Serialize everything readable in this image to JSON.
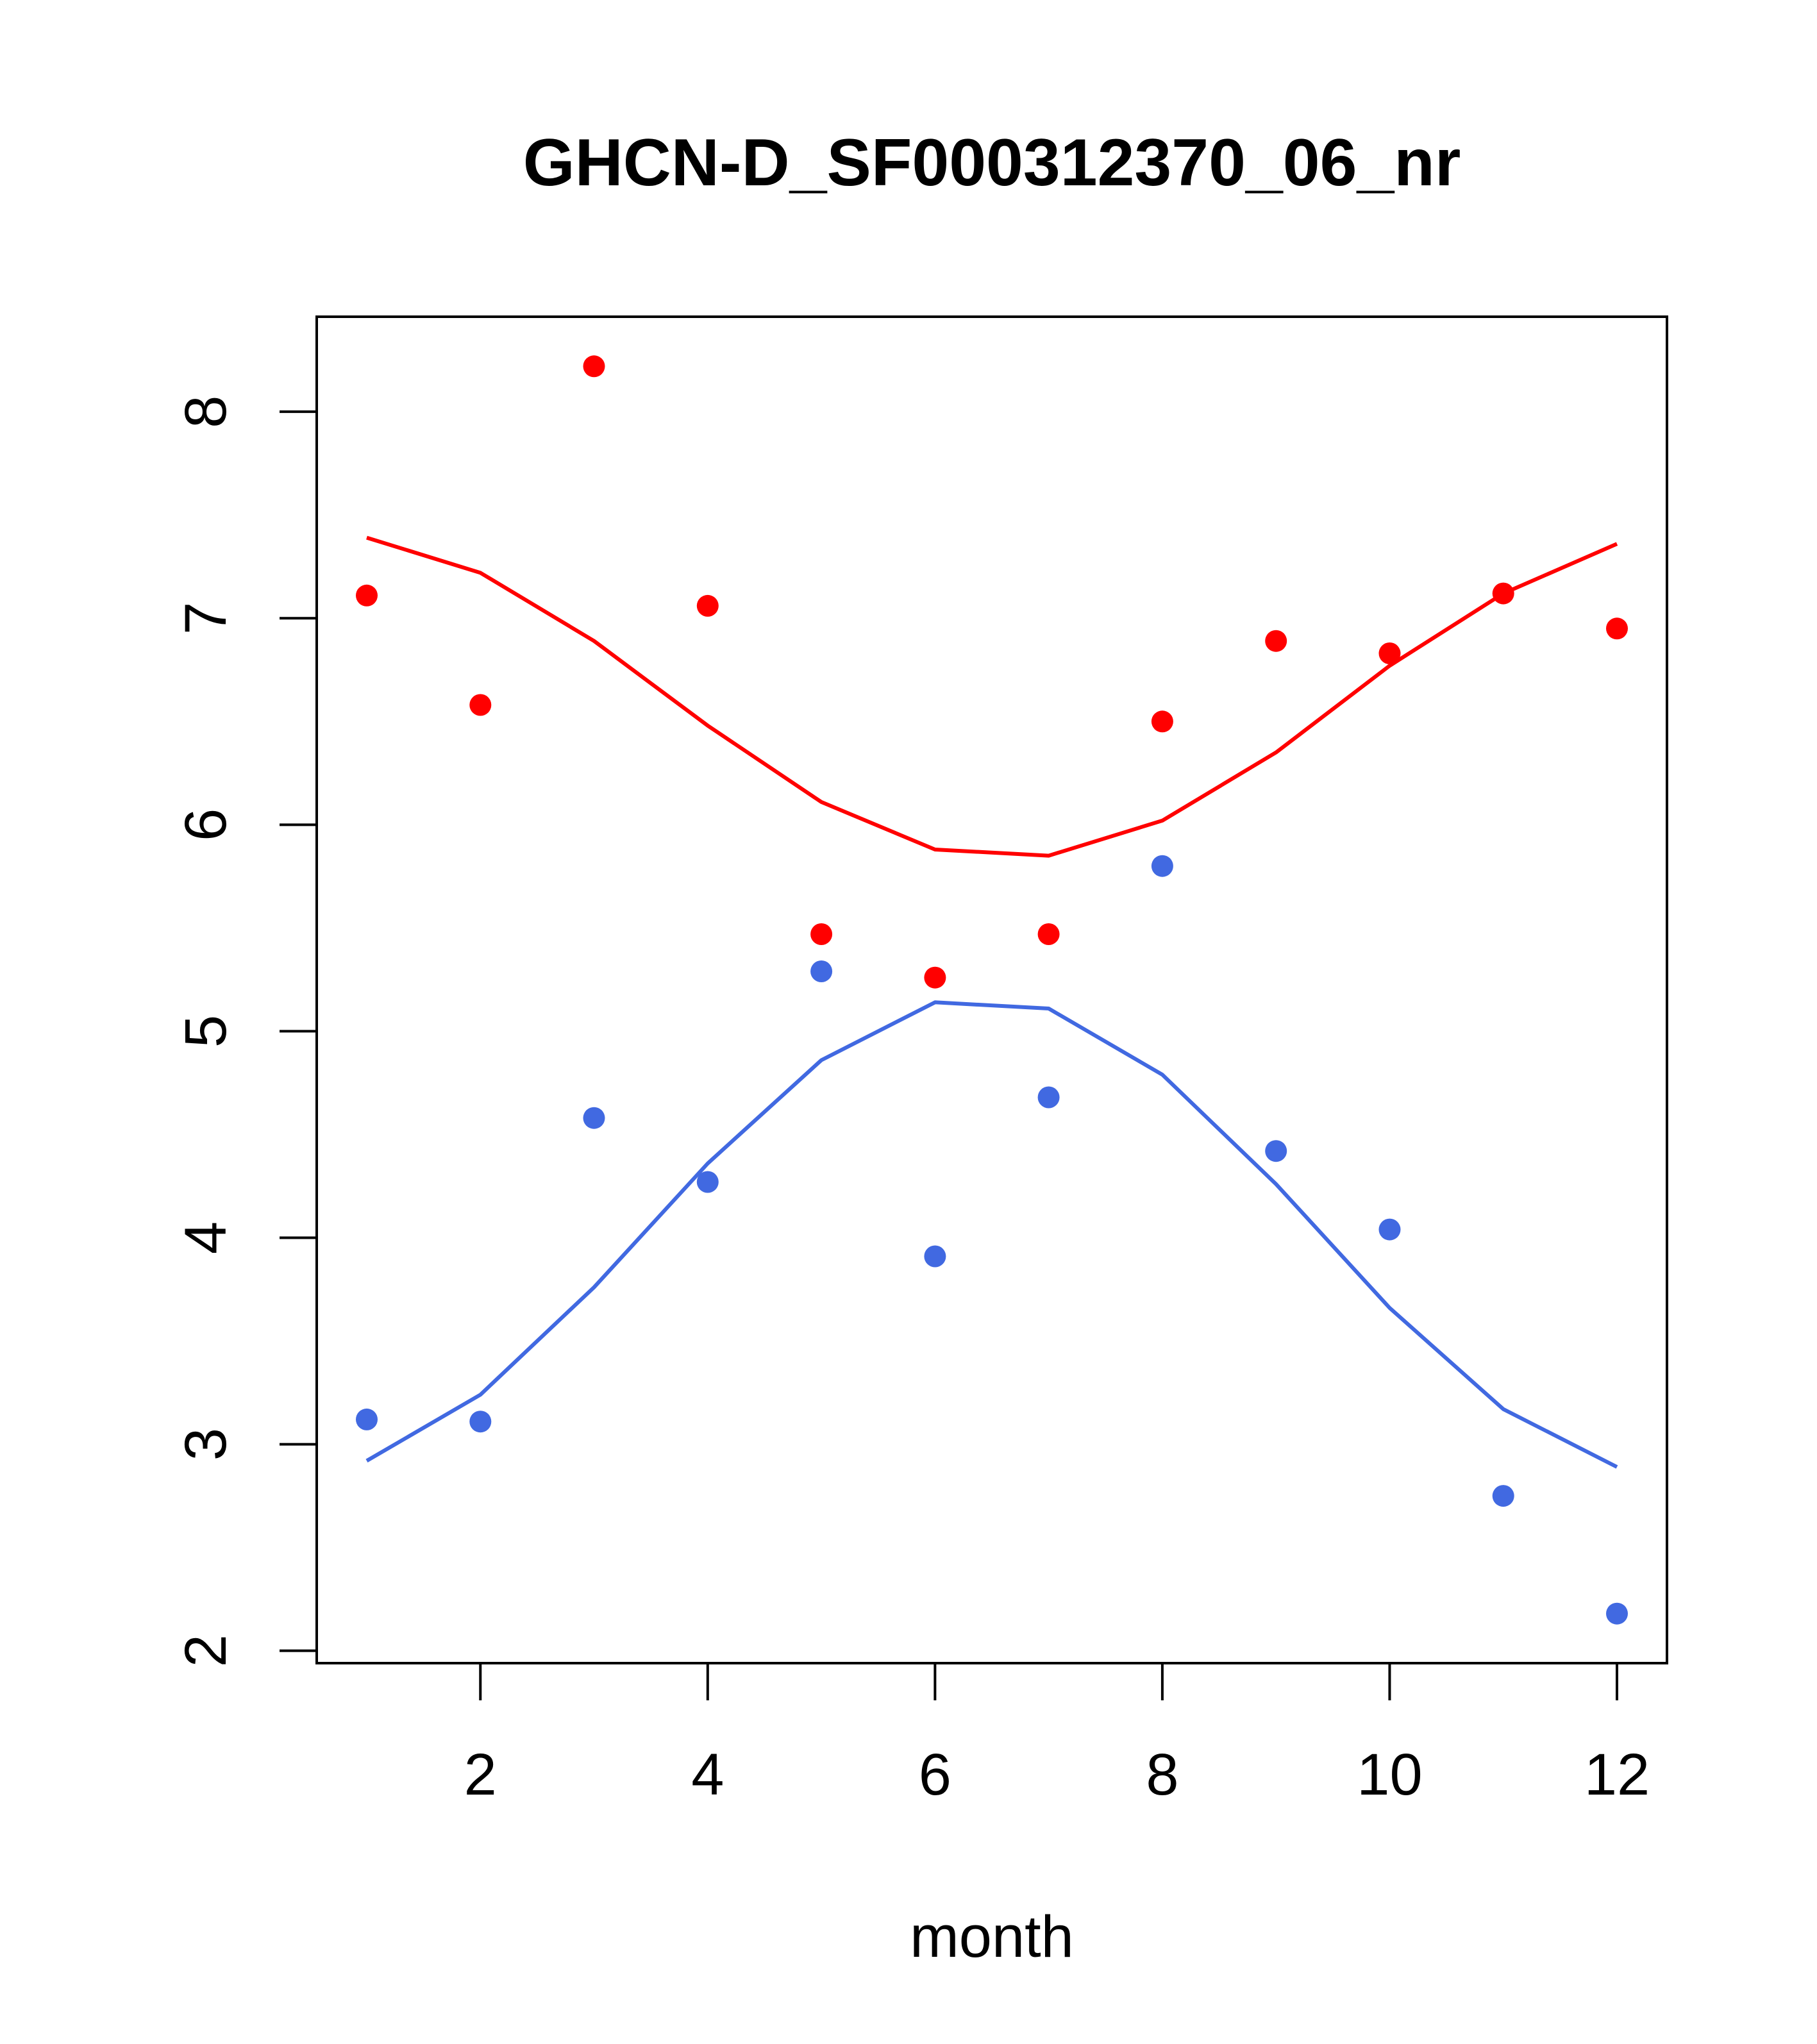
{
  "chart_data": {
    "type": "scatter",
    "title": "GHCN-D_SF000312370_06_nr",
    "xlabel": "month",
    "ylabel": "",
    "xlim": [
      0.56,
      12.44
    ],
    "ylim": [
      1.94,
      8.46
    ],
    "x_ticks": [
      2,
      4,
      6,
      8,
      10,
      12
    ],
    "y_ticks": [
      2,
      3,
      4,
      5,
      6,
      7,
      8
    ],
    "grid": false,
    "legend": "none",
    "x": [
      1,
      2,
      3,
      4,
      5,
      6,
      7,
      8,
      9,
      10,
      11,
      12
    ],
    "series": [
      {
        "color": "#ff0000",
        "points": [
          7.11,
          6.58,
          8.22,
          7.06,
          5.47,
          5.26,
          5.47,
          6.5,
          6.89,
          6.83,
          7.12,
          6.95
        ],
        "curve": [
          7.39,
          7.22,
          6.89,
          6.48,
          6.11,
          5.88,
          5.85,
          6.02,
          6.35,
          6.77,
          7.12,
          7.36
        ]
      },
      {
        "color": "#4169e1",
        "points": [
          3.12,
          3.11,
          4.58,
          4.27,
          5.29,
          3.91,
          4.68,
          5.8,
          4.42,
          4.04,
          2.75,
          2.18
        ],
        "curve": [
          2.92,
          3.24,
          3.76,
          4.36,
          4.86,
          5.14,
          5.11,
          4.79,
          4.26,
          3.66,
          3.17,
          2.89
        ]
      }
    ]
  }
}
